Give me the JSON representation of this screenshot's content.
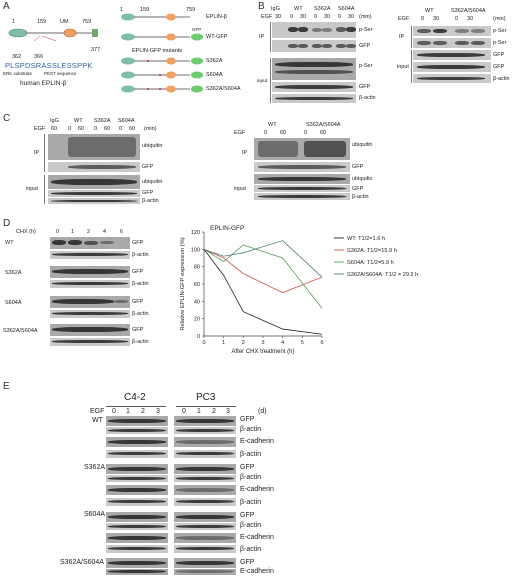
{
  "panels": {
    "A": "A",
    "B": "B",
    "C": "C",
    "D": "D",
    "E": "E"
  },
  "panelA": {
    "nums_top": [
      "1",
      "159",
      "UM",
      "759"
    ],
    "nums_bottom": [
      "362",
      "366",
      "377"
    ],
    "sequence": "PLSPDSRASSLESSPPK",
    "erk_label": "ERK substrate",
    "pest_label": "PEST sequence",
    "protein_label": "human EPLIN-β",
    "right_nums": [
      "1",
      "159",
      "759"
    ],
    "eplin_label": "EPLIN-β",
    "gfp_tag": "GFP",
    "wt_gfp_label": "WT-GFP",
    "mutants_title": "EPLIN-GFP mutants",
    "mutants": [
      "S362A",
      "S604A",
      "S362A/S604A"
    ]
  },
  "panelB": {
    "groups": [
      "IgG",
      "WT",
      "S362A",
      "S604A"
    ],
    "egf_label": "EGF",
    "egf_values": [
      "30",
      "0",
      "30",
      "0",
      "30",
      "0",
      "30"
    ],
    "min_label": "(min)",
    "ip_label": "IP",
    "input_label": "input",
    "rows": [
      "p-Ser",
      "GFP",
      "p-Ser",
      "GFP",
      "β-actin"
    ],
    "right_groups": [
      "WT",
      "S362A/S604A"
    ],
    "right_egf_values": [
      "0",
      "30",
      "0",
      "30"
    ],
    "right_rows": [
      "p-Ser",
      "p-Ser",
      "GFP",
      "GFP",
      "β-actin"
    ]
  },
  "panelC": {
    "groups": [
      "IgG",
      "WT",
      "S362A",
      "S604A"
    ],
    "egf_label": "EGF",
    "egf_values": [
      "60",
      "0",
      "60",
      "0",
      "60",
      "0",
      "60"
    ],
    "min_label": "(min)",
    "ip_label": "IP",
    "input_label": "input",
    "rows": [
      "ubiquitin",
      "GFP",
      "ubiquitin",
      "GFP",
      "β-actin"
    ],
    "right_groups": [
      "WT",
      "S362A/S604A"
    ],
    "right_egf_values": [
      "0",
      "60",
      "0",
      "60"
    ],
    "right_rows": [
      "ubiquitin",
      "GFP",
      "ubiquitin",
      "GFP",
      "β-actin"
    ]
  },
  "panelD": {
    "chx_label": "CHX (h)",
    "chx_values": [
      "0",
      "1",
      "2",
      "4",
      "6"
    ],
    "blot_groups": [
      "WT",
      "S362A",
      "S604A",
      "S362A/S604A"
    ],
    "blot_rows": [
      "GFP",
      "β-actin"
    ]
  },
  "panelE": {
    "cell_lines": [
      "C4-2",
      "PC3"
    ],
    "egf_label": "EGF",
    "egf_values": [
      "0",
      "1",
      "2",
      "3",
      "0",
      "1",
      "2",
      "3"
    ],
    "day_label": "(d)",
    "groups": [
      "WT",
      "S362A",
      "S604A",
      "S362A/S604A"
    ],
    "rows": [
      "GFP",
      "β-actin",
      "E-cadherin",
      "β-actin"
    ]
  },
  "chart_data": {
    "type": "line",
    "title": "EPLIN-GFP",
    "xlabel": "After CHX treatment (h)",
    "ylabel": "Relative EPLIN-GFP expression (%)",
    "xlim": [
      0,
      6
    ],
    "ylim": [
      0,
      120
    ],
    "x_ticks": [
      "0",
      "1",
      "2",
      "3",
      "4",
      "5",
      "6"
    ],
    "y_ticks": [
      "0",
      "20",
      "40",
      "60",
      "80",
      "100",
      "120"
    ],
    "x": [
      0,
      1,
      2,
      4,
      6
    ],
    "series": [
      {
        "name": "WT: T1/2=1.6 h",
        "color": "#222222",
        "values": [
          100,
          70,
          28,
          8,
          2
        ]
      },
      {
        "name": "S362A: T1/2=15.9 h",
        "color": "#d9534f",
        "values": [
          100,
          90,
          72,
          50,
          68
        ]
      },
      {
        "name": "S604A: T1/2=5.9 h",
        "color": "#5aa05a",
        "values": [
          100,
          86,
          105,
          90,
          32
        ]
      },
      {
        "name": "S362A/S604A: T1/2 = 29.2 h",
        "color": "#4a7f7f",
        "values": [
          100,
          92,
          96,
          110,
          68
        ]
      }
    ],
    "grid": false,
    "legend": "right"
  }
}
